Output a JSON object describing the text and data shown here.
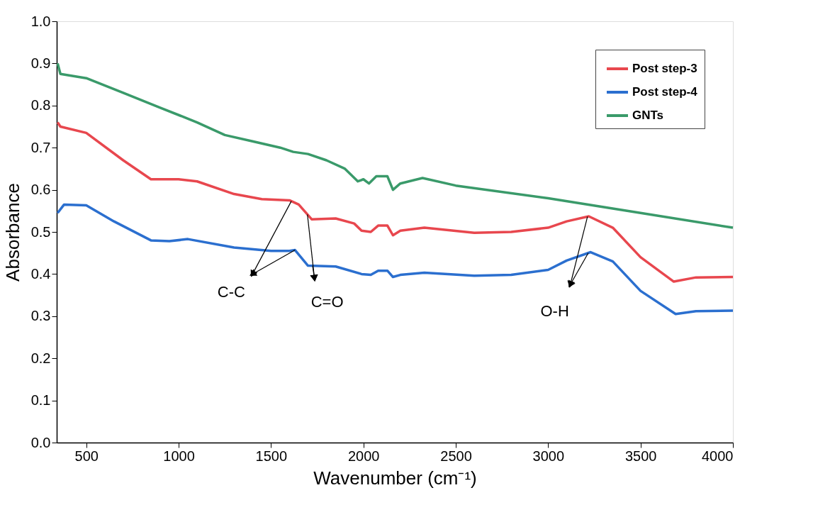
{
  "chart_data": {
    "type": "line",
    "xlabel": "Wavenumber (cm⁻¹)",
    "ylabel": "Absorbance",
    "xlim": [
      340,
      4000
    ],
    "ylim": [
      0,
      1.0
    ],
    "xticks": [
      500,
      1000,
      1500,
      2000,
      2500,
      3000,
      3500,
      4000
    ],
    "yticks": [
      {
        "value": 0,
        "label": "0.0"
      },
      0.1,
      0.2,
      0.3,
      0.4,
      0.5,
      0.6,
      0.7,
      0.8,
      0.9,
      {
        "value": 1.0,
        "label": "1.0"
      }
    ],
    "grid": false,
    "legend": "top right",
    "line_style": "solid",
    "marker": "none",
    "series": [
      {
        "name": "Post step-3",
        "color": "#e8474e",
        "x": [
          345,
          360,
          500,
          700,
          850,
          1000,
          1100,
          1300,
          1450,
          1600,
          1650,
          1720,
          1850,
          1950,
          1990,
          2040,
          2080,
          2130,
          2160,
          2200,
          2330,
          2600,
          2800,
          3000,
          3100,
          3220,
          3350,
          3500,
          3680,
          3800,
          4000
        ],
        "values": [
          0.76,
          0.75,
          0.735,
          0.67,
          0.625,
          0.625,
          0.62,
          0.59,
          0.578,
          0.575,
          0.565,
          0.53,
          0.532,
          0.52,
          0.503,
          0.5,
          0.515,
          0.515,
          0.492,
          0.503,
          0.51,
          0.498,
          0.5,
          0.51,
          0.525,
          0.537,
          0.51,
          0.44,
          0.382,
          0.392,
          0.393
        ]
      },
      {
        "name": "Post step-4",
        "color": "#2b6fcf",
        "x": [
          345,
          380,
          500,
          650,
          850,
          950,
          1050,
          1300,
          1500,
          1600,
          1630,
          1700,
          1850,
          1990,
          2040,
          2080,
          2130,
          2160,
          2200,
          2330,
          2600,
          2800,
          3000,
          3100,
          3230,
          3350,
          3500,
          3690,
          3800,
          4000
        ],
        "values": [
          0.545,
          0.565,
          0.563,
          0.525,
          0.48,
          0.478,
          0.483,
          0.463,
          0.455,
          0.455,
          0.457,
          0.42,
          0.418,
          0.4,
          0.398,
          0.408,
          0.408,
          0.393,
          0.398,
          0.403,
          0.396,
          0.398,
          0.41,
          0.432,
          0.452,
          0.43,
          0.36,
          0.305,
          0.312,
          0.313
        ]
      },
      {
        "name": "GNTs",
        "color": "#3a9a6a",
        "x": [
          345,
          360,
          500,
          700,
          900,
          1100,
          1250,
          1400,
          1550,
          1620,
          1700,
          1800,
          1900,
          1970,
          2000,
          2030,
          2070,
          2130,
          2160,
          2200,
          2320,
          2500,
          3000,
          3500,
          4000
        ],
        "values": [
          0.9,
          0.875,
          0.865,
          0.83,
          0.795,
          0.76,
          0.73,
          0.715,
          0.7,
          0.69,
          0.685,
          0.67,
          0.65,
          0.62,
          0.625,
          0.615,
          0.632,
          0.632,
          0.6,
          0.615,
          0.628,
          0.61,
          0.58,
          0.545,
          0.51
        ]
      }
    ],
    "annotations": [
      {
        "text": "C-C",
        "x": 1400,
        "y": 0.4
      },
      {
        "text": "C=O",
        "x": 1735,
        "y": 0.39
      },
      {
        "text": "O-H",
        "x": 3120,
        "y": 0.375
      }
    ]
  }
}
